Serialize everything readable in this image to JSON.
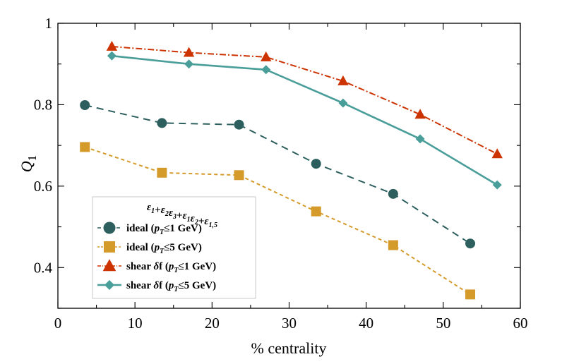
{
  "chart_data": {
    "type": "line",
    "xlabel": "% centrality",
    "ylabel": "Q",
    "ylabel_sub": "1",
    "xlim": [
      0,
      60
    ],
    "ylim": [
      0.3,
      1.0
    ],
    "x_ticks": [
      0,
      10,
      20,
      30,
      40,
      50,
      60
    ],
    "x_tick_labels": [
      "0",
      "10",
      "20",
      "30",
      "40",
      "50",
      "60"
    ],
    "y_ticks": [
      0.4,
      0.6,
      0.8,
      1.0
    ],
    "y_tick_labels": [
      "0.4",
      "0.6",
      "0.8",
      "1"
    ],
    "grid": false,
    "legend": {
      "placement": "bottom-left",
      "title": "ε1+ε2ε3+ε1ε2+ε1,5"
    },
    "series": [
      {
        "name": "ideal (pT≤1 GeV)",
        "label_prefix": "ideal (",
        "label_var": "p",
        "label_var_sub": "T",
        "label_suffix": "≤1 GeV)",
        "color": "#2e5f5f",
        "marker": "circle",
        "dash": "10,7",
        "x": [
          3.5,
          13.5,
          23.5,
          33.5,
          43.5,
          53.5
        ],
        "y": [
          0.799,
          0.755,
          0.751,
          0.655,
          0.581,
          0.459
        ]
      },
      {
        "name": "ideal (pT≤5 GeV)",
        "label_prefix": "ideal (",
        "label_var": "p",
        "label_var_sub": "T",
        "label_suffix": "≤5 GeV)",
        "color": "#d49a2a",
        "marker": "square",
        "dash": "5,4",
        "x": [
          3.5,
          13.5,
          23.5,
          33.5,
          43.5,
          53.5
        ],
        "y": [
          0.696,
          0.633,
          0.627,
          0.538,
          0.455,
          0.334
        ]
      },
      {
        "name": "shear δf (pT≤1 GeV)",
        "label_prefix": "shear ",
        "label_delta": "δ",
        "label_mid": "f (",
        "label_var": "p",
        "label_var_sub": "T",
        "label_suffix": "≤1 GeV)",
        "color": "#cc3300",
        "marker": "triangle",
        "dash": "9,3,2,3",
        "x": [
          7,
          17,
          27,
          37,
          47,
          57
        ],
        "y": [
          0.943,
          0.928,
          0.917,
          0.858,
          0.776,
          0.679
        ]
      },
      {
        "name": "shear δf (pT≤5 GeV)",
        "label_prefix": "shear ",
        "label_delta": "δ",
        "label_mid": "f (",
        "label_var": "p",
        "label_var_sub": "T",
        "label_suffix": "≤5 GeV)",
        "color": "#4a9e9a",
        "marker": "diamond",
        "dash": "",
        "x": [
          7,
          17,
          27,
          37,
          47,
          57
        ],
        "y": [
          0.92,
          0.9,
          0.886,
          0.804,
          0.716,
          0.603
        ]
      }
    ]
  }
}
